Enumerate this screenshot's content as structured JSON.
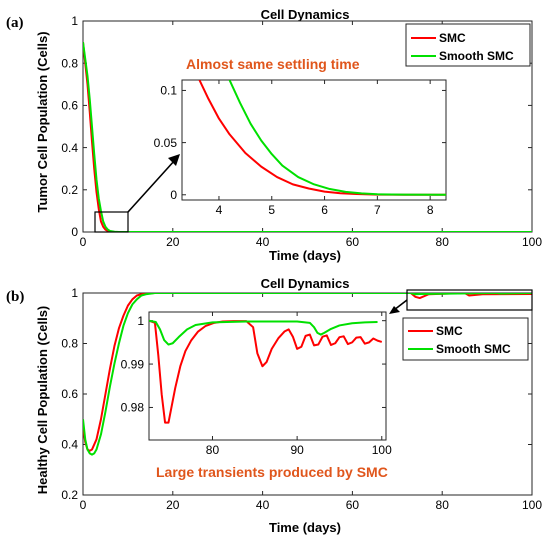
{
  "panels": [
    {
      "tag": "(a)",
      "title": "Cell Dynamics",
      "xlabel": "Time (days)",
      "ylabel": "Tumor Cell Population (Cells)",
      "annotation": "Almost same settling time",
      "annotation_color": "#e0561c",
      "legend": [
        "SMC",
        "Smooth SMC"
      ]
    },
    {
      "tag": "(b)",
      "title": "Cell Dynamics",
      "xlabel": "Time (days)",
      "ylabel": "Healthy Cell Population (Cells)",
      "annotation": "Large transients produced by SMC",
      "annotation_color": "#e0561c",
      "legend": [
        "SMC",
        "Smooth SMC"
      ]
    }
  ],
  "chart_data": [
    {
      "type": "line",
      "title": "Cell Dynamics",
      "xlabel": "Time (days)",
      "ylabel": "Tumor Cell Population (Cells)",
      "xlim": [
        0,
        100
      ],
      "ylim": [
        0,
        1
      ],
      "xticks": [
        0,
        20,
        40,
        60,
        80,
        100
      ],
      "yticks": [
        0,
        0.2,
        0.4,
        0.6,
        0.8,
        1
      ],
      "legend_position": "top-right",
      "series": [
        {
          "name": "SMC",
          "color": "#ff0000",
          "x": [
            0,
            0.5,
            1,
            1.5,
            2,
            2.5,
            3,
            3.5,
            4,
            4.5,
            5,
            5.5,
            6,
            7,
            8,
            10,
            20,
            100
          ],
          "y": [
            0.9,
            0.8,
            0.7,
            0.57,
            0.43,
            0.3,
            0.19,
            0.11,
            0.05,
            0.025,
            0.011,
            0.005,
            0.002,
            0.0005,
            0,
            0,
            0,
            0
          ]
        },
        {
          "name": "Smooth SMC",
          "color": "#00e000",
          "x": [
            0,
            0.5,
            1,
            1.5,
            2,
            2.5,
            3,
            3.5,
            4,
            4.5,
            5,
            5.5,
            6,
            7,
            8,
            10,
            20,
            100
          ],
          "y": [
            0.9,
            0.82,
            0.74,
            0.63,
            0.5,
            0.37,
            0.25,
            0.16,
            0.1,
            0.05,
            0.025,
            0.012,
            0.005,
            0.001,
            0,
            0,
            0,
            0
          ]
        }
      ],
      "inset": {
        "xlim": [
          3.3,
          8.3
        ],
        "ylim": [
          -0.005,
          0.11
        ],
        "xticks": [
          4,
          5,
          6,
          7,
          8
        ],
        "yticks": [
          0,
          0.05,
          0.1
        ],
        "series": [
          {
            "name": "SMC",
            "color": "#ff0000",
            "x": [
              3.63,
              3.8,
              4.0,
              4.2,
              4.5,
              4.8,
              5.1,
              5.4,
              5.7,
              6.0,
              6.3,
              6.6,
              7.0,
              7.5,
              8.3
            ],
            "y": [
              0.11,
              0.092,
              0.073,
              0.058,
              0.04,
              0.027,
              0.017,
              0.01,
              0.006,
              0.003,
              0.0015,
              0.0007,
              0.0002,
              0,
              0
            ]
          },
          {
            "name": "Smooth SMC",
            "color": "#00e000",
            "x": [
              4.2,
              4.4,
              4.6,
              4.8,
              5.0,
              5.2,
              5.5,
              5.8,
              6.1,
              6.4,
              6.7,
              7.0,
              7.5,
              8.3
            ],
            "y": [
              0.11,
              0.088,
              0.068,
              0.052,
              0.039,
              0.028,
              0.017,
              0.01,
              0.0055,
              0.0028,
              0.0013,
              0.0005,
              0.0001,
              0
            ]
          }
        ]
      }
    },
    {
      "type": "line",
      "title": "Cell Dynamics",
      "xlabel": "Time (days)",
      "ylabel": "Healthy Cell Population (Cells)",
      "xlim": [
        0,
        100
      ],
      "ylim": [
        0.2,
        1
      ],
      "xticks": [
        0,
        20,
        40,
        60,
        80,
        100
      ],
      "yticks": [
        0.2,
        0.4,
        0.6,
        0.8,
        1
      ],
      "legend_position": "inside inset, right",
      "series": [
        {
          "name": "SMC",
          "color": "#ff0000",
          "x": [
            0,
            0.5,
            1,
            1.5,
            2,
            3,
            4,
            5,
            6,
            7,
            8,
            9,
            10,
            11,
            12,
            13,
            14,
            16,
            20,
            73,
            74,
            75,
            77,
            85,
            86,
            89,
            100
          ],
          "y": [
            0.47,
            0.41,
            0.38,
            0.375,
            0.38,
            0.42,
            0.5,
            0.6,
            0.7,
            0.79,
            0.86,
            0.91,
            0.95,
            0.975,
            0.99,
            0.995,
            0.998,
            1,
            1,
            1,
            0.985,
            0.98,
            0.995,
            1,
            0.99,
            0.995,
            0.996
          ]
        },
        {
          "name": "Smooth SMC",
          "color": "#00e000",
          "x": [
            0,
            0.5,
            1,
            1.5,
            2,
            2.5,
            3,
            4,
            5,
            6,
            7,
            8,
            9,
            10,
            11,
            12,
            13,
            14,
            16,
            20,
            73,
            74,
            75,
            92,
            93,
            100
          ],
          "y": [
            0.5,
            0.42,
            0.38,
            0.365,
            0.36,
            0.365,
            0.38,
            0.44,
            0.53,
            0.63,
            0.72,
            0.8,
            0.87,
            0.92,
            0.955,
            0.975,
            0.99,
            0.995,
            1,
            1,
            1,
            0.995,
            0.996,
            1,
            0.998,
            1
          ]
        }
      ],
      "inset": {
        "xlim": [
          72.5,
          100.5
        ],
        "ylim": [
          0.9725,
          1.002
        ],
        "xticks": [
          80,
          90,
          100
        ],
        "yticks": [
          0.98,
          0.99,
          1
        ],
        "series": [
          {
            "name": "SMC",
            "color": "#ff0000",
            "x": [
              72.5,
              73.2,
              73.6,
              74.0,
              74.4,
              74.8,
              75.2,
              75.6,
              76.2,
              76.8,
              77.5,
              78.3,
              79.2,
              80.2,
              81.2,
              82.5,
              84.0,
              84.8,
              85.3,
              85.9,
              86.4,
              87.0,
              87.8,
              88.5,
              89.0,
              89.5,
              90.0,
              90.5,
              91.0,
              91.5,
              92.0,
              92.5,
              93.0,
              93.5,
              94.0,
              94.5,
              95.0,
              95.5,
              96.0,
              96.5,
              97.0,
              97.5,
              98.0,
              98.5,
              99.0,
              99.5,
              100.0
            ],
            "y": [
              1.0,
              0.9995,
              0.992,
              0.983,
              0.9765,
              0.9765,
              0.9805,
              0.9845,
              0.9895,
              0.993,
              0.9955,
              0.9975,
              0.9988,
              0.9995,
              0.9998,
              0.9999,
              0.9999,
              0.9985,
              0.9925,
              0.9895,
              0.9905,
              0.9935,
              0.996,
              0.9975,
              0.998,
              0.9963,
              0.9935,
              0.994,
              0.9965,
              0.9968,
              0.9943,
              0.9945,
              0.9963,
              0.9966,
              0.9944,
              0.9948,
              0.9962,
              0.9964,
              0.9946,
              0.995,
              0.9961,
              0.9962,
              0.9947,
              0.995,
              0.9959,
              0.9954,
              0.9951
            ]
          },
          {
            "name": "Smooth SMC",
            "color": "#00e000",
            "x": [
              72.5,
              73.3,
              73.8,
              74.3,
              74.8,
              75.3,
              76.0,
              77.0,
              78.0,
              80.0,
              84.0,
              90.0,
              91.5,
              92.0,
              92.4,
              92.8,
              93.2,
              94.0,
              95.0,
              96.5,
              98.0,
              99.5
            ],
            "y": [
              1.0,
              0.9997,
              0.998,
              0.9955,
              0.9945,
              0.9948,
              0.9962,
              0.998,
              0.999,
              0.9996,
              0.9998,
              0.9998,
              0.9995,
              0.9985,
              0.9972,
              0.9968,
              0.9972,
              0.9981,
              0.9989,
              0.9994,
              0.9996,
              0.9997
            ]
          }
        ]
      }
    }
  ]
}
